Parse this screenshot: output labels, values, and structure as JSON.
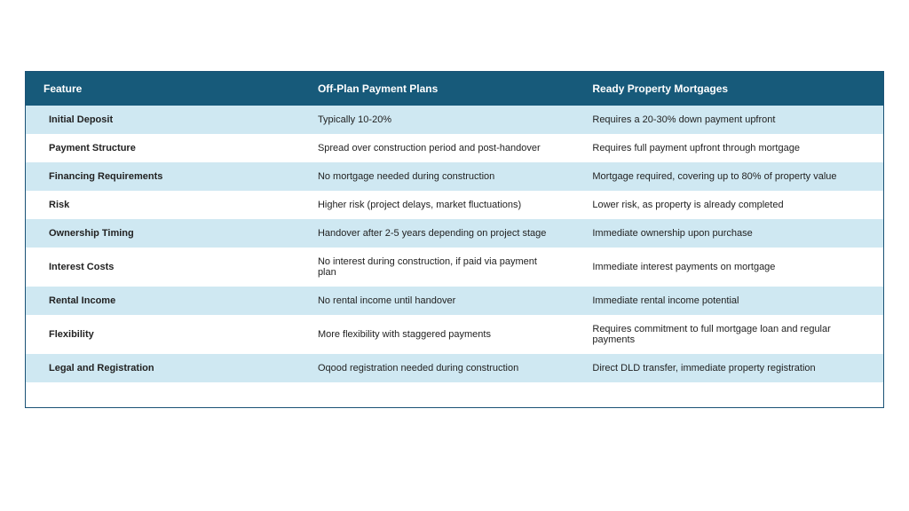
{
  "table": {
    "columns": [
      "Feature",
      "Off-Plan Payment Plans",
      "Ready Property Mortgages"
    ],
    "rows": [
      [
        "Initial Deposit",
        "Typically 10-20%",
        "Requires a 20-30% down payment upfront"
      ],
      [
        "Payment Structure",
        "Spread over construction period and post-handover",
        "Requires full payment upfront through mortgage"
      ],
      [
        "Financing Requirements",
        "No mortgage needed during construction",
        "Mortgage required, covering up to 80% of property value"
      ],
      [
        "Risk",
        "Higher risk (project delays, market fluctuations)",
        "Lower risk, as property is already completed"
      ],
      [
        "Ownership Timing",
        "Handover after 2-5 years depending on project stage",
        "Immediate ownership upon purchase"
      ],
      [
        "Interest Costs",
        "No interest during construction, if paid via payment plan",
        "Immediate interest payments on mortgage"
      ],
      [
        "Rental Income",
        "No rental income until handover",
        "Immediate rental income potential"
      ],
      [
        "Flexibility",
        "More flexibility with staggered payments",
        "Requires commitment to full mortgage loan and regular payments"
      ],
      [
        "Legal and Registration",
        "Oqood registration needed during construction",
        "Direct DLD transfer, immediate property registration"
      ]
    ],
    "header_bg": "#175a7a",
    "header_fg": "#ffffff",
    "row_odd_bg": "#cfe8f2",
    "row_even_bg": "#ffffff",
    "border_color": "#1a5276",
    "header_fontsize": 12,
    "cell_fontsize": 11
  }
}
